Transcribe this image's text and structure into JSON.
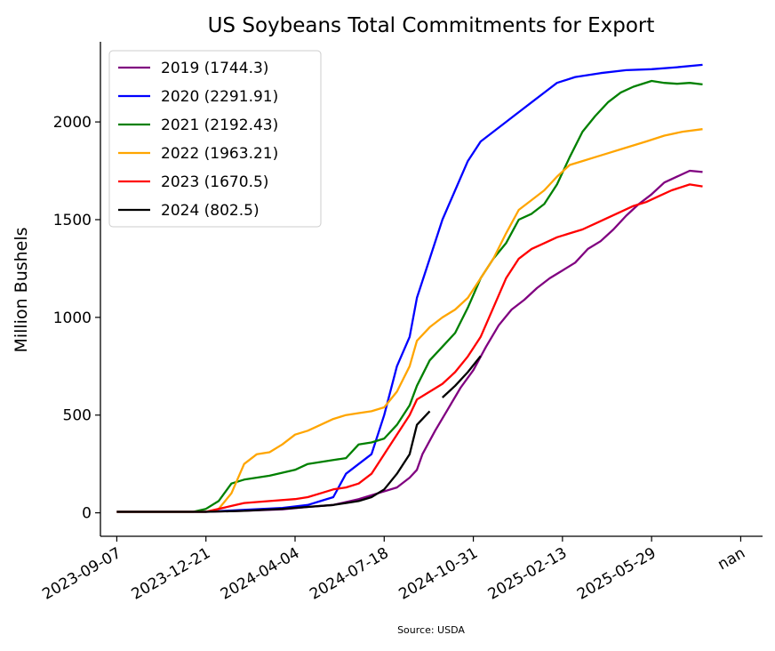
{
  "chart_data": {
    "type": "line",
    "title": "US Soybeans Total Commitments for Export",
    "xlabel": "",
    "ylabel": "Million Bushels",
    "source": "Source: USDA",
    "xlim": [
      -9,
      355
    ],
    "ylim": [
      -120,
      2410
    ],
    "x_ticks": [
      {
        "x": 0,
        "label": "2023-09-07"
      },
      {
        "x": 49,
        "label": "2023-12-21"
      },
      {
        "x": 98,
        "label": "2024-04-04"
      },
      {
        "x": 147,
        "label": "2024-07-18"
      },
      {
        "x": 196,
        "label": "2024-10-31"
      },
      {
        "x": 245,
        "label": "2025-02-13"
      },
      {
        "x": 294,
        "label": "2025-05-29"
      },
      {
        "x": 343,
        "label": "nan"
      }
    ],
    "y_ticks": [
      0,
      500,
      1000,
      1500,
      2000
    ],
    "legend": {
      "position": "upper-left"
    },
    "grid": false,
    "series": [
      {
        "name": "2019 (1744.3)",
        "color": "#800080",
        "points": [
          [
            0,
            5
          ],
          [
            49,
            5
          ],
          [
            70,
            10
          ],
          [
            91,
            18
          ],
          [
            105,
            30
          ],
          [
            119,
            40
          ],
          [
            133,
            70
          ],
          [
            140,
            90
          ],
          [
            154,
            130
          ],
          [
            161,
            180
          ],
          [
            165,
            220
          ],
          [
            168,
            300
          ],
          [
            175,
            420
          ],
          [
            182,
            530
          ],
          [
            189,
            640
          ],
          [
            196,
            730
          ],
          [
            203,
            850
          ],
          [
            210,
            960
          ],
          [
            217,
            1040
          ],
          [
            224,
            1090
          ],
          [
            231,
            1150
          ],
          [
            238,
            1200
          ],
          [
            245,
            1240
          ],
          [
            252,
            1280
          ],
          [
            259,
            1350
          ],
          [
            266,
            1390
          ],
          [
            273,
            1450
          ],
          [
            280,
            1520
          ],
          [
            287,
            1580
          ],
          [
            294,
            1630
          ],
          [
            301,
            1690
          ],
          [
            308,
            1720
          ],
          [
            315,
            1750
          ],
          [
            322,
            1744
          ]
        ]
      },
      {
        "name": "2020 (2291.91)",
        "color": "#0000ff",
        "points": [
          [
            0,
            5
          ],
          [
            49,
            5
          ],
          [
            70,
            15
          ],
          [
            91,
            25
          ],
          [
            105,
            40
          ],
          [
            112,
            60
          ],
          [
            119,
            80
          ],
          [
            126,
            200
          ],
          [
            133,
            250
          ],
          [
            140,
            300
          ],
          [
            147,
            500
          ],
          [
            154,
            750
          ],
          [
            161,
            900
          ],
          [
            165,
            1100
          ],
          [
            172,
            1300
          ],
          [
            179,
            1500
          ],
          [
            186,
            1650
          ],
          [
            193,
            1800
          ],
          [
            200,
            1900
          ],
          [
            207,
            1950
          ],
          [
            214,
            2000
          ],
          [
            221,
            2050
          ],
          [
            228,
            2100
          ],
          [
            235,
            2150
          ],
          [
            242,
            2200
          ],
          [
            252,
            2230
          ],
          [
            266,
            2250
          ],
          [
            280,
            2265
          ],
          [
            294,
            2270
          ],
          [
            308,
            2280
          ],
          [
            322,
            2292
          ]
        ]
      },
      {
        "name": "2021 (2192.43)",
        "color": "#008000",
        "points": [
          [
            0,
            5
          ],
          [
            42,
            5
          ],
          [
            49,
            20
          ],
          [
            56,
            60
          ],
          [
            63,
            150
          ],
          [
            70,
            170
          ],
          [
            84,
            190
          ],
          [
            98,
            220
          ],
          [
            105,
            250
          ],
          [
            112,
            260
          ],
          [
            119,
            270
          ],
          [
            126,
            280
          ],
          [
            133,
            350
          ],
          [
            140,
            360
          ],
          [
            147,
            380
          ],
          [
            154,
            450
          ],
          [
            161,
            550
          ],
          [
            165,
            650
          ],
          [
            172,
            780
          ],
          [
            179,
            850
          ],
          [
            186,
            920
          ],
          [
            193,
            1050
          ],
          [
            200,
            1200
          ],
          [
            207,
            1300
          ],
          [
            214,
            1380
          ],
          [
            221,
            1500
          ],
          [
            228,
            1530
          ],
          [
            235,
            1580
          ],
          [
            242,
            1680
          ],
          [
            249,
            1820
          ],
          [
            256,
            1950
          ],
          [
            263,
            2030
          ],
          [
            270,
            2100
          ],
          [
            277,
            2150
          ],
          [
            284,
            2180
          ],
          [
            294,
            2210
          ],
          [
            301,
            2200
          ],
          [
            308,
            2195
          ],
          [
            315,
            2200
          ],
          [
            322,
            2192
          ]
        ]
      },
      {
        "name": "2022 (1963.21)",
        "color": "#ffa500",
        "points": [
          [
            0,
            5
          ],
          [
            49,
            5
          ],
          [
            56,
            20
          ],
          [
            63,
            100
          ],
          [
            70,
            250
          ],
          [
            77,
            300
          ],
          [
            84,
            310
          ],
          [
            91,
            350
          ],
          [
            98,
            400
          ],
          [
            105,
            420
          ],
          [
            112,
            450
          ],
          [
            119,
            480
          ],
          [
            126,
            500
          ],
          [
            133,
            510
          ],
          [
            140,
            520
          ],
          [
            147,
            540
          ],
          [
            154,
            620
          ],
          [
            161,
            750
          ],
          [
            165,
            880
          ],
          [
            172,
            950
          ],
          [
            179,
            1000
          ],
          [
            186,
            1040
          ],
          [
            193,
            1100
          ],
          [
            200,
            1200
          ],
          [
            207,
            1300
          ],
          [
            214,
            1430
          ],
          [
            221,
            1550
          ],
          [
            228,
            1600
          ],
          [
            235,
            1650
          ],
          [
            242,
            1720
          ],
          [
            249,
            1780
          ],
          [
            256,
            1800
          ],
          [
            263,
            1820
          ],
          [
            270,
            1840
          ],
          [
            277,
            1860
          ],
          [
            284,
            1880
          ],
          [
            291,
            1900
          ],
          [
            301,
            1930
          ],
          [
            311,
            1950
          ],
          [
            322,
            1963
          ]
        ]
      },
      {
        "name": "2023 (1670.5)",
        "color": "#ff0000",
        "points": [
          [
            0,
            5
          ],
          [
            49,
            5
          ],
          [
            63,
            35
          ],
          [
            70,
            50
          ],
          [
            84,
            60
          ],
          [
            98,
            70
          ],
          [
            105,
            80
          ],
          [
            112,
            100
          ],
          [
            119,
            120
          ],
          [
            126,
            130
          ],
          [
            133,
            150
          ],
          [
            140,
            200
          ],
          [
            147,
            300
          ],
          [
            154,
            400
          ],
          [
            161,
            500
          ],
          [
            165,
            580
          ],
          [
            172,
            620
          ],
          [
            179,
            660
          ],
          [
            186,
            720
          ],
          [
            193,
            800
          ],
          [
            200,
            900
          ],
          [
            207,
            1050
          ],
          [
            214,
            1200
          ],
          [
            221,
            1300
          ],
          [
            228,
            1350
          ],
          [
            235,
            1380
          ],
          [
            242,
            1410
          ],
          [
            249,
            1430
          ],
          [
            256,
            1450
          ],
          [
            263,
            1480
          ],
          [
            270,
            1510
          ],
          [
            277,
            1540
          ],
          [
            284,
            1570
          ],
          [
            291,
            1590
          ],
          [
            298,
            1620
          ],
          [
            305,
            1650
          ],
          [
            315,
            1680
          ],
          [
            322,
            1670
          ]
        ]
      },
      {
        "name": "2024 (802.5)",
        "color": "#000000",
        "points": [
          [
            0,
            5
          ],
          [
            49,
            5
          ],
          [
            70,
            10
          ],
          [
            91,
            20
          ],
          [
            105,
            30
          ],
          [
            119,
            40
          ],
          [
            126,
            50
          ],
          [
            133,
            60
          ],
          [
            140,
            80
          ],
          [
            147,
            120
          ],
          [
            154,
            200
          ],
          [
            161,
            300
          ],
          [
            165,
            450
          ],
          [
            172,
            520
          ]
        ],
        "points2": [
          [
            179,
            590
          ],
          [
            186,
            650
          ],
          [
            193,
            720
          ],
          [
            200,
            802.5
          ]
        ]
      }
    ]
  }
}
